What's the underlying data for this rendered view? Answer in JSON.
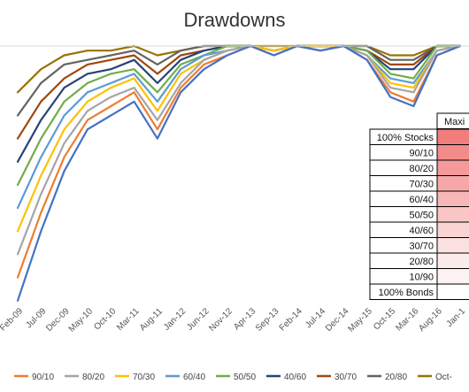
{
  "chart_data": {
    "type": "line",
    "title": "Drawdowns",
    "xlabel": "",
    "ylabel": "",
    "grid": false,
    "legend_position": "bottom",
    "x_tick_labels": [
      "Feb-09",
      "Jul-09",
      "Dec-09",
      "May-10",
      "Oct-10",
      "Mar-11",
      "Aug-11",
      "Jan-12",
      "Jun-12",
      "Nov-12",
      "Apr-13",
      "Sep-13",
      "Feb-14",
      "Jul-14",
      "Dec-14",
      "May-15",
      "Oct-15",
      "Mar-16",
      "Aug-16",
      "Jan-1"
    ],
    "series": [
      {
        "name": "100% Stocks",
        "color": "#4472C4",
        "values": [
          -0.55,
          -0.4,
          -0.27,
          -0.18,
          -0.15,
          -0.12,
          -0.2,
          -0.1,
          -0.05,
          -0.02,
          0,
          -0.02,
          0,
          -0.01,
          0,
          -0.03,
          -0.11,
          -0.13,
          -0.02,
          0
        ]
      },
      {
        "name": "90/10",
        "color": "#ED7D31",
        "values": [
          -0.5,
          -0.36,
          -0.24,
          -0.16,
          -0.13,
          -0.1,
          -0.18,
          -0.09,
          -0.04,
          -0.02,
          0,
          -0.02,
          0,
          -0.01,
          0,
          -0.03,
          -0.1,
          -0.12,
          -0.02,
          0
        ]
      },
      {
        "name": "80/20",
        "color": "#A5A5A5",
        "values": [
          -0.45,
          -0.32,
          -0.21,
          -0.14,
          -0.11,
          -0.09,
          -0.16,
          -0.08,
          -0.03,
          -0.01,
          0,
          -0.02,
          0,
          -0.01,
          0,
          -0.02,
          -0.09,
          -0.1,
          -0.01,
          0
        ]
      },
      {
        "name": "70/30",
        "color": "#FFC000",
        "values": [
          -0.4,
          -0.28,
          -0.18,
          -0.12,
          -0.09,
          -0.07,
          -0.14,
          -0.06,
          -0.03,
          -0.01,
          0,
          -0.01,
          0,
          0,
          0,
          -0.02,
          -0.08,
          -0.09,
          -0.01,
          0
        ]
      },
      {
        "name": "60/40",
        "color": "#5B9BD5",
        "values": [
          -0.35,
          -0.24,
          -0.15,
          -0.1,
          -0.08,
          -0.06,
          -0.12,
          -0.05,
          -0.02,
          -0.01,
          0,
          -0.01,
          0,
          0,
          0,
          -0.02,
          -0.07,
          -0.08,
          -0.01,
          0
        ]
      },
      {
        "name": "50/50",
        "color": "#70AD47",
        "values": [
          -0.3,
          -0.2,
          -0.12,
          -0.08,
          -0.06,
          -0.05,
          -0.1,
          -0.04,
          -0.02,
          0,
          0,
          -0.01,
          0,
          0,
          0,
          -0.01,
          -0.06,
          -0.07,
          0,
          0
        ]
      },
      {
        "name": "40/60",
        "color": "#264478",
        "values": [
          -0.25,
          -0.16,
          -0.09,
          -0.06,
          -0.05,
          -0.03,
          -0.08,
          -0.03,
          -0.01,
          0,
          0,
          -0.01,
          0,
          0,
          0,
          -0.01,
          -0.05,
          -0.05,
          0,
          0
        ]
      },
      {
        "name": "30/70",
        "color": "#9E480E",
        "values": [
          -0.2,
          -0.12,
          -0.07,
          -0.04,
          -0.03,
          -0.02,
          -0.06,
          -0.02,
          -0.01,
          0,
          0,
          -0.01,
          0,
          0,
          0,
          -0.01,
          -0.04,
          -0.04,
          0,
          0
        ]
      },
      {
        "name": "20/80",
        "color": "#636363",
        "values": [
          -0.15,
          -0.08,
          -0.04,
          -0.03,
          -0.02,
          -0.01,
          -0.04,
          -0.01,
          0,
          0,
          0,
          -0.01,
          0,
          0,
          0,
          0,
          -0.03,
          -0.03,
          0,
          0
        ]
      },
      {
        "name": "Oct-",
        "color": "#997300",
        "values": [
          -0.1,
          -0.05,
          -0.02,
          -0.01,
          -0.01,
          0,
          -0.02,
          -0.01,
          0,
          0,
          0,
          0,
          0,
          0,
          0,
          0,
          -0.02,
          -0.02,
          0,
          0
        ]
      }
    ],
    "legend": [
      {
        "label": "90/10",
        "color": "#ED7D31"
      },
      {
        "label": "80/20",
        "color": "#A5A5A5"
      },
      {
        "label": "70/30",
        "color": "#FFC000"
      },
      {
        "label": "60/40",
        "color": "#5B9BD5"
      },
      {
        "label": "50/50",
        "color": "#70AD47"
      },
      {
        "label": "40/60",
        "color": "#264478"
      },
      {
        "label": "30/70",
        "color": "#9E480E"
      },
      {
        "label": "20/80",
        "color": "#636363"
      },
      {
        "label": "Oct-",
        "color": "#997300"
      }
    ],
    "table": {
      "header": "Maxi",
      "rows": [
        {
          "label": "100% Stocks",
          "color": "#F27D7D"
        },
        {
          "label": "90/10",
          "color": "#F38B8B"
        },
        {
          "label": "80/20",
          "color": "#F59A9A"
        },
        {
          "label": "70/30",
          "color": "#F6A8A8"
        },
        {
          "label": "60/40",
          "color": "#F8B7B7"
        },
        {
          "label": "50/50",
          "color": "#F9C5C5"
        },
        {
          "label": "40/60",
          "color": "#FAD3D3"
        },
        {
          "label": "30/70",
          "color": "#FBE0E0"
        },
        {
          "label": "20/80",
          "color": "#FCEBEB"
        },
        {
          "label": "10/90",
          "color": "#FDF3F3"
        },
        {
          "label": "100% Bonds",
          "color": "#FFFFFF"
        }
      ]
    }
  }
}
